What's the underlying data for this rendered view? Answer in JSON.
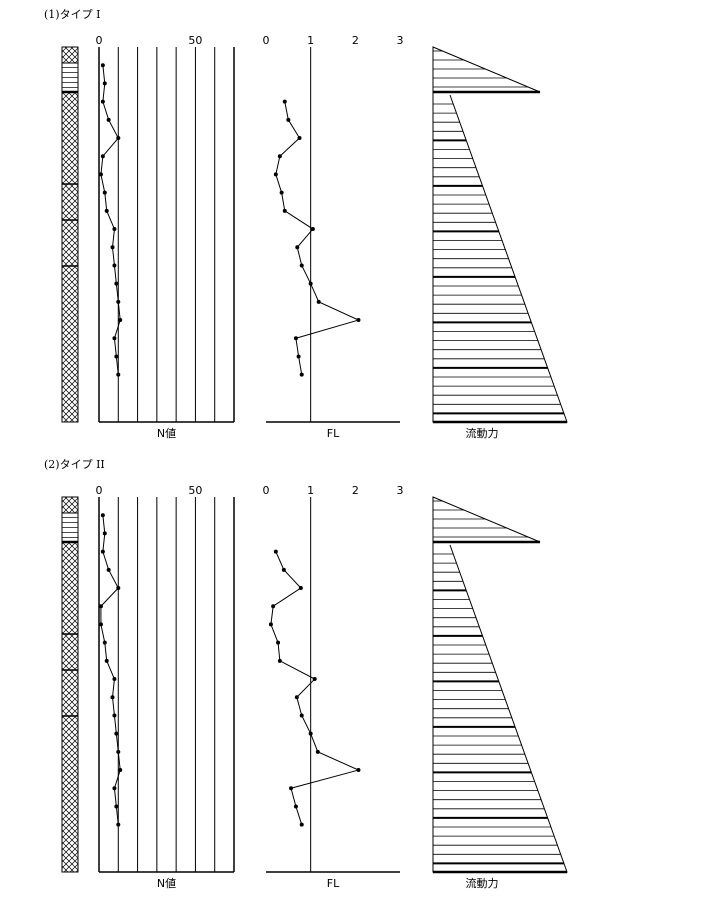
{
  "chart_data": [
    {
      "type": "line",
      "title": "(1)タイプ I",
      "x_label": "N値",
      "xlim": [
        0,
        70
      ],
      "xticks": [
        0,
        50
      ],
      "xgrid": [
        10,
        20,
        30,
        40,
        50,
        60
      ],
      "ylim": [
        0,
        20.6
      ],
      "depths": [
        1,
        2,
        3,
        4,
        5,
        6,
        7,
        8,
        9,
        10,
        11,
        12,
        13,
        14,
        15,
        16,
        17,
        18
      ],
      "values": [
        2,
        3,
        2,
        5,
        10,
        2,
        1,
        3,
        4,
        8,
        7,
        8,
        9,
        10,
        11,
        8,
        9,
        10
      ]
    },
    {
      "type": "line",
      "x_label": "FL",
      "xlim": [
        0,
        3
      ],
      "xticks": [
        0,
        1,
        2,
        3
      ],
      "xgrid": [
        1
      ],
      "ylim": [
        0,
        20.6
      ],
      "depths": [
        3,
        4,
        5,
        6,
        7,
        8,
        9,
        10,
        11,
        12,
        13,
        14,
        15,
        16,
        17,
        18
      ],
      "values": [
        0.42,
        0.5,
        0.75,
        0.31,
        0.22,
        0.35,
        0.42,
        1.05,
        0.7,
        0.8,
        1.0,
        1.18,
        2.07,
        0.67,
        0.73,
        0.8
      ]
    },
    {
      "type": "flow",
      "x_label": "流動力"
    },
    {
      "type": "line",
      "title": "(2)タイプ II",
      "x_label": "N値",
      "xlim": [
        0,
        70
      ],
      "xticks": [
        0,
        50
      ],
      "xgrid": [
        10,
        20,
        30,
        40,
        50,
        60
      ],
      "ylim": [
        0,
        20.6
      ],
      "depths": [
        1,
        2,
        3,
        4,
        5,
        6,
        7,
        8,
        9,
        10,
        11,
        12,
        13,
        14,
        15,
        16,
        17,
        18
      ],
      "values": [
        2,
        3,
        2,
        5,
        10,
        1,
        1,
        3,
        4,
        8,
        7,
        8,
        9,
        10,
        11,
        8,
        9,
        10
      ]
    },
    {
      "type": "line",
      "x_label": "FL",
      "xlim": [
        0,
        3
      ],
      "xticks": [
        0,
        1,
        2,
        3
      ],
      "xgrid": [
        1
      ],
      "ylim": [
        0,
        20.6
      ],
      "depths": [
        3,
        4,
        5,
        6,
        7,
        8,
        9,
        10,
        11,
        12,
        13,
        14,
        15,
        16,
        17,
        18
      ],
      "values": [
        0.22,
        0.4,
        0.78,
        0.16,
        0.11,
        0.27,
        0.31,
        1.09,
        0.69,
        0.8,
        1.0,
        1.16,
        2.07,
        0.56,
        0.67,
        0.8
      ]
    },
    {
      "type": "flow",
      "x_label": "流動力"
    }
  ]
}
